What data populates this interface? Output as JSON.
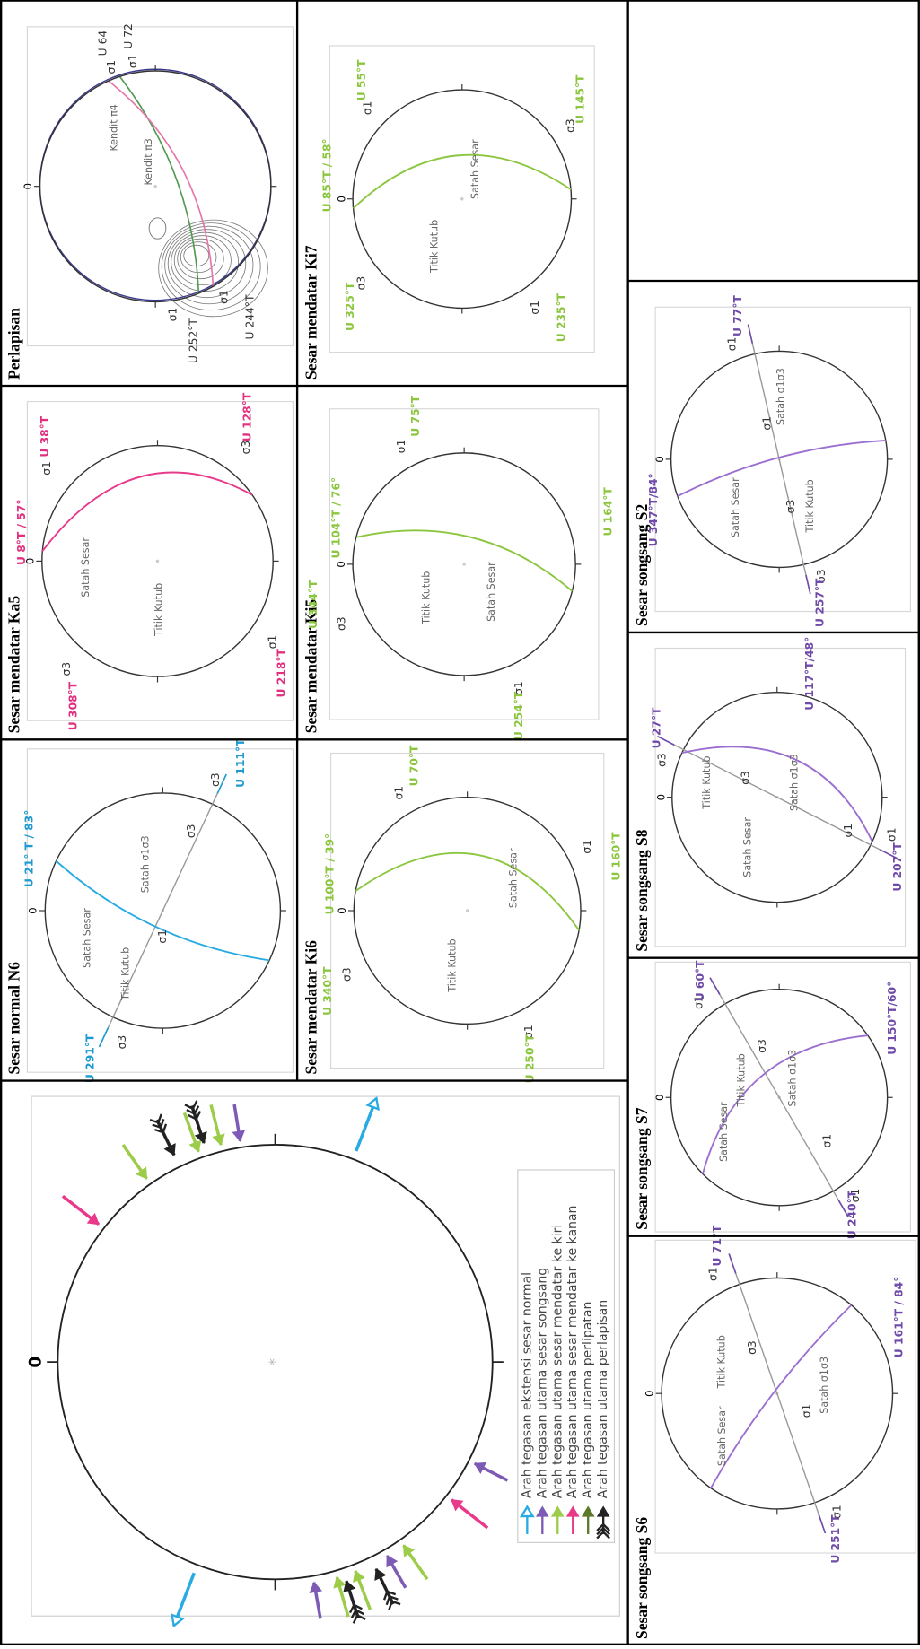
{
  "big_panel": {
    "north_label": "0",
    "legend": [
      "Arah tegasan ekstensi sesar normal",
      "Arah tegasan utama sesar songsang",
      "Arah tegasan utama sesar mendatar ke kiri",
      "Arah tegasan utama sesar mendatar ke kanan",
      "Arah tegasan utama perlipatan",
      "Arah tegasan utama perlapisan"
    ]
  },
  "panels": [
    {
      "title": "Sesar normal N6",
      "north": "0",
      "labels": [
        "U 21° T / 83°",
        "σ3",
        "U 111°T",
        "σ3",
        "σ3",
        "U 291°T",
        "σ1",
        "Satah Sesar",
        "Titik Kutub",
        "Satah σ1σ3"
      ]
    },
    {
      "title": "Sesar mendatar Ka5",
      "north": "0",
      "labels": [
        "U 8°T / 57°",
        "σ1",
        "U 38°T",
        "σ3",
        "U 128°T",
        "σ1",
        "U 218°T",
        "σ3",
        "U 308°T",
        "Satah Sesar",
        "Titik Kutub"
      ]
    },
    {
      "title": "Perlapisan",
      "north": "0",
      "labels": [
        "σ1",
        "U 64",
        "σ1",
        "U 72",
        "Kendit π3",
        "Kendit π4",
        "σ1",
        "U 252°T",
        "σ1",
        "U 244°T"
      ]
    },
    {
      "title": "Sesar mendatar Ki6",
      "north": "0",
      "labels": [
        "U 100°T / 39°",
        "σ1",
        "U 70°T",
        "σ1",
        "U 160°T",
        "σ3",
        "U 340°T",
        "σ1",
        "U 250°T",
        "Titik Kutub",
        "Satah Sesar"
      ]
    },
    {
      "title": "Sesar mendatar Ki5",
      "north": "0",
      "labels": [
        "U 104°T / 76°",
        "σ1",
        "U 75°T",
        "U 164°T",
        "σ3",
        "U 344°T",
        "σ1",
        "U 254°T",
        "Titik Kutub",
        "Satah Sesar"
      ]
    },
    {
      "title": "Sesar mendatar Ki7",
      "north": "0",
      "labels": [
        "U 85°T / 58°",
        "σ1",
        "U 55°T",
        "σ3",
        "U 145°T",
        "σ3",
        "U 325°T",
        "σ1",
        "U 235°T",
        "Titik Kutub",
        "Satah Sesar"
      ]
    },
    {
      "title": "Sesar songsang S6",
      "north": "0",
      "labels": [
        "σ1",
        "U 71°T",
        "U 161°T / 84°",
        "σ1",
        "U 251°T",
        "Satah Sesar",
        "Titik Kutub",
        "σ3",
        "σ1",
        "Satah σ1σ3"
      ]
    },
    {
      "title": "Sesar songsang S7",
      "north": "0",
      "labels": [
        "σ1",
        "U 60°T",
        "U 150°T/60°",
        "σ1",
        "U 240°T",
        "Satah Sesar",
        "Titik Kutub",
        "σ3",
        "Satah σ1σ3",
        "σ1"
      ]
    },
    {
      "title": "Sesar songsang S8",
      "north": "0",
      "labels": [
        "σ3",
        "U 27°T",
        "U 117°T/48°",
        "σ1",
        "U 207°T",
        "Satah Sesar",
        "Titik Kutub",
        "σ3",
        "σ1",
        "Satah σ1σ3"
      ]
    },
    {
      "title": "Sesar songsang S2",
      "north": "0",
      "labels": [
        "σ1",
        "U 77°T",
        "U 347°T/84°",
        "σ3",
        "U 257°T",
        "Satah Sesar",
        "σ1",
        "Satah σ1σ3",
        "σ3",
        "Titik Kutub"
      ]
    }
  ]
}
